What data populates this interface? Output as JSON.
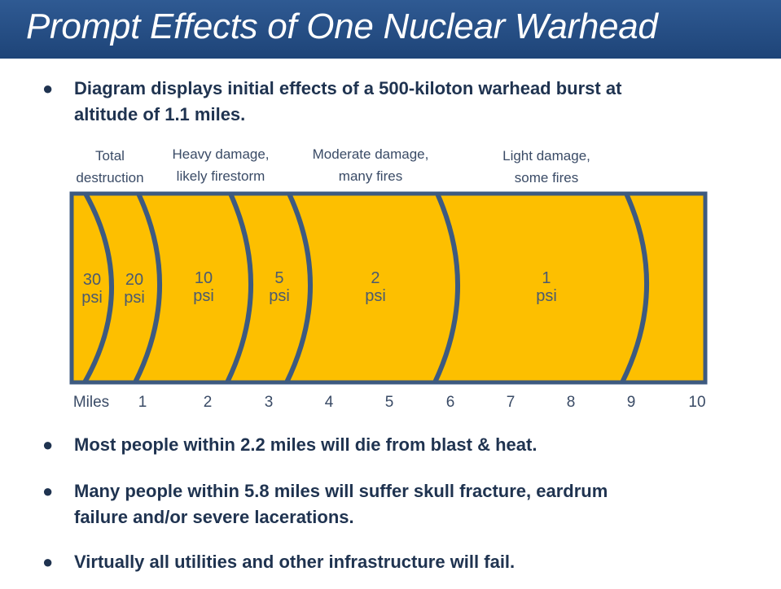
{
  "title": "Prompt Effects of One Nuclear Warhead",
  "bullets": [
    {
      "line1": "Diagram displays initial effects of a 500-kiloton warhead burst at",
      "line2": "altitude of 1.1 miles."
    },
    {
      "line1": "Most people within 2.2 miles will die from blast & heat."
    },
    {
      "line1": "Many people within 5.8 miles will suffer skull fracture, eardrum",
      "line2": "failure and/or severe lacerations."
    },
    {
      "line1": "Virtually all utilities and other infrastructure will fail."
    }
  ],
  "diagram": {
    "zones": [
      {
        "line1": "Total",
        "line2": "destruction"
      },
      {
        "line1": "Heavy damage,",
        "line2": "likely firestorm"
      },
      {
        "line1": "Moderate damage,",
        "line2": "many fires"
      },
      {
        "line1": "Light damage,",
        "line2": "some fires"
      }
    ],
    "rings": [
      {
        "value": "30",
        "unit": "psi"
      },
      {
        "value": "20",
        "unit": "psi"
      },
      {
        "value": "10",
        "unit": "psi"
      },
      {
        "value": "5",
        "unit": "psi"
      },
      {
        "value": "2",
        "unit": "psi"
      },
      {
        "value": "1",
        "unit": "psi"
      }
    ],
    "axis_label": "Miles",
    "ticks": [
      "1",
      "2",
      "3",
      "4",
      "5",
      "6",
      "7",
      "8",
      "9",
      "10"
    ],
    "colors": {
      "fill": "#fdbf00",
      "stroke": "#3d5a80",
      "title_bar": "#24497f"
    }
  }
}
